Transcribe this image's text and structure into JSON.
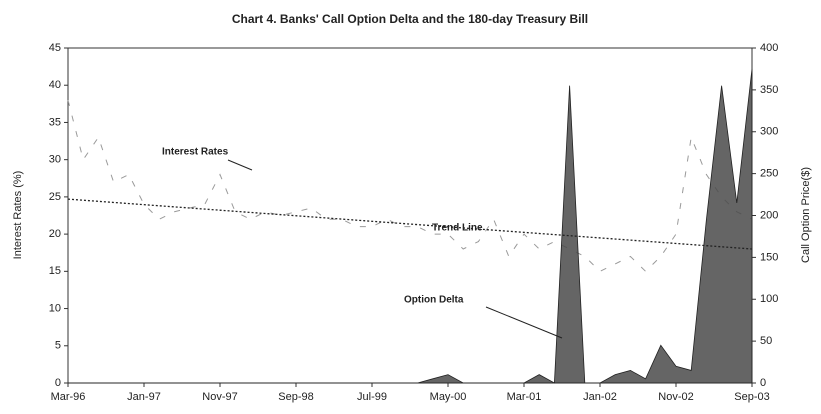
{
  "chart_data": {
    "type": "line-area",
    "title": "Chart 4. Banks' Call Option Delta and the 180-day Treasury Bill",
    "y_label": "Interest Rates (%)",
    "y2_label": "Call Option Price($)",
    "x": [
      "Mar-96",
      "May-96",
      "Jul-96",
      "Sep-96",
      "Nov-96",
      "Jan-97",
      "Mar-97",
      "May-97",
      "Jul-97",
      "Sep-97",
      "Nov-97",
      "Jan-98",
      "Mar-98",
      "May-98",
      "Jul-98",
      "Sep-98",
      "Nov-98",
      "Jan-99",
      "Mar-99",
      "May-99",
      "Jul-99",
      "Sep-99",
      "Nov-99",
      "Jan-00",
      "Mar-00",
      "May-00",
      "Jul-00",
      "Sep-00",
      "Nov-00",
      "Jan-01",
      "Mar-01",
      "May-01",
      "Jul-01",
      "Sep-01",
      "Nov-01",
      "Jan-02",
      "Mar-02",
      "May-02",
      "Jul-02",
      "Sep-02",
      "Nov-02",
      "Jan-03",
      "Mar-03",
      "May-03",
      "Jul-03",
      "Sep-03"
    ],
    "xticks": [
      "Mar-96",
      "Jan-97",
      "Nov-97",
      "Sep-98",
      "Jul-99",
      "May-00",
      "Mar-01",
      "Jan-02",
      "Nov-02",
      "Sep-03"
    ],
    "series": [
      {
        "name": "Interest Rates",
        "color": "#9a9a9a",
        "style": "dashed",
        "axis": "y",
        "values": [
          38,
          30,
          33,
          27,
          28,
          24,
          22,
          23,
          23.5,
          24,
          28,
          23,
          22,
          23,
          22.5,
          23,
          23.5,
          22,
          22,
          21,
          21,
          22,
          21,
          21,
          20,
          20,
          18,
          19,
          22,
          17,
          20,
          18,
          19,
          18,
          17,
          15,
          16,
          17,
          15,
          17,
          20,
          33,
          28,
          25,
          23,
          22
        ]
      },
      {
        "name": "Option Delta",
        "color": "#4a4a4a",
        "style": "area",
        "axis": "y2",
        "values": [
          0,
          0,
          0,
          0,
          0,
          0,
          0,
          0,
          0,
          0,
          0,
          0,
          0,
          0,
          0,
          0,
          0,
          0,
          0,
          0,
          0,
          0,
          0,
          0,
          5,
          10,
          0,
          0,
          0,
          0,
          0,
          10,
          0,
          355,
          0,
          0,
          10,
          15,
          5,
          45,
          20,
          15,
          195,
          355,
          215,
          375
        ]
      },
      {
        "name": "Trend Line",
        "color": "#222222",
        "style": "dotted",
        "axis": "y",
        "x": [
          "Mar-96",
          "Sep-03"
        ],
        "values": [
          24.7,
          18.0
        ]
      }
    ],
    "ylim": [
      0,
      45
    ],
    "yticks": [
      0,
      5,
      10,
      15,
      20,
      25,
      30,
      35,
      40,
      45
    ],
    "y2lim": [
      0,
      400
    ],
    "y2ticks": [
      0,
      50,
      100,
      150,
      200,
      250,
      300,
      350,
      400
    ]
  }
}
